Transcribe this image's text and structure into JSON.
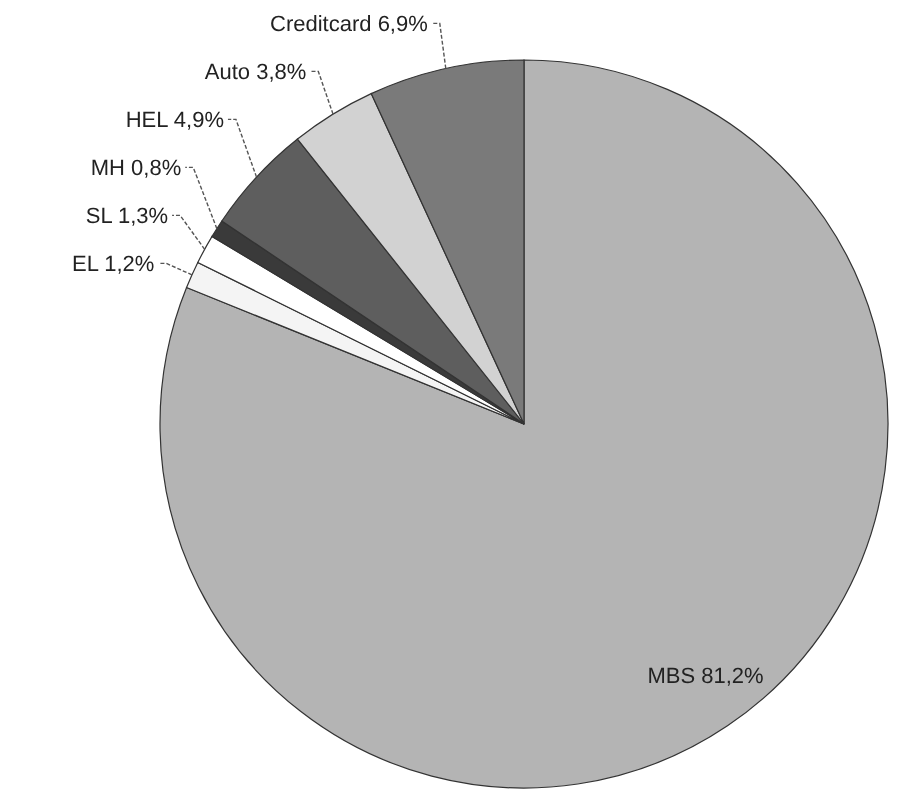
{
  "chart_data": {
    "type": "pie",
    "categories": [
      "MBS",
      "EL",
      "SL",
      "MH",
      "HEL",
      "Auto",
      "Creditcard"
    ],
    "values": [
      81.2,
      1.2,
      1.3,
      0.8,
      4.9,
      3.8,
      6.9
    ],
    "value_labels": [
      "81,2%",
      "1,2%",
      "1,3%",
      "0,8%",
      "4,9%",
      "3,8%",
      "6,9%"
    ],
    "colors": [
      "#b4b4b4",
      "#f4f4f4",
      "#ffffff",
      "#3a3a3a",
      "#5e5e5e",
      "#d2d2d2",
      "#7a7a7a"
    ]
  }
}
